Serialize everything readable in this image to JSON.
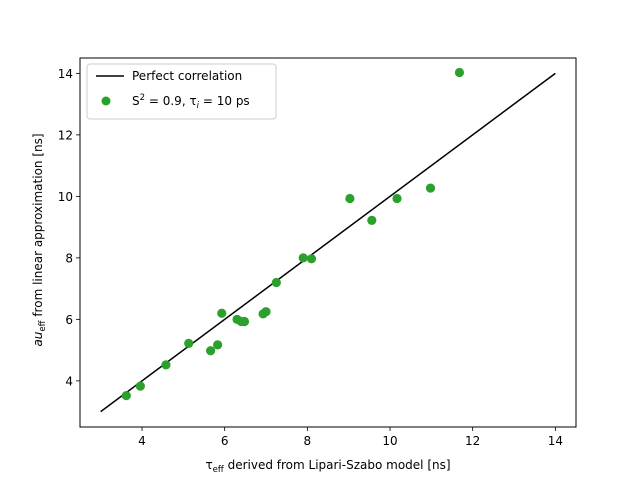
{
  "chart_data": {
    "type": "scatter",
    "x_label_main": "τ",
    "x_label_sub": "eff",
    "x_label_rest": " derived from Lipari-Szabo model [ns]",
    "y_label_main": "au",
    "y_label_sub": "eff",
    "y_label_rest": " from linear approximation [ns]",
    "xlim": [
      2.5,
      14.5
    ],
    "ylim": [
      2.5,
      14.5
    ],
    "x_ticks": [
      4,
      6,
      8,
      10,
      12,
      14
    ],
    "y_ticks": [
      4,
      6,
      8,
      10,
      12,
      14
    ],
    "grid": false,
    "legend_position": "top-left",
    "line": {
      "legend_label": "Perfect correlation",
      "color": "#000000",
      "x": [
        3,
        14
      ],
      "y": [
        3,
        14
      ]
    },
    "scatter": {
      "legend_label_main": "S",
      "legend_label_sup": "2",
      "legend_label_mid": " = 0.9, τ",
      "legend_label_sub": "i",
      "legend_label_end": " = 10 ps",
      "color": "#2ca02c",
      "points": [
        {
          "x": 3.62,
          "y": 3.52
        },
        {
          "x": 3.96,
          "y": 3.83
        },
        {
          "x": 4.58,
          "y": 4.52
        },
        {
          "x": 5.13,
          "y": 5.22
        },
        {
          "x": 5.66,
          "y": 4.98
        },
        {
          "x": 5.83,
          "y": 5.17
        },
        {
          "x": 5.93,
          "y": 6.2
        },
        {
          "x": 6.3,
          "y": 6.0
        },
        {
          "x": 6.4,
          "y": 5.93
        },
        {
          "x": 6.48,
          "y": 5.93
        },
        {
          "x": 6.93,
          "y": 6.18
        },
        {
          "x": 7.0,
          "y": 6.25
        },
        {
          "x": 7.25,
          "y": 7.2
        },
        {
          "x": 7.9,
          "y": 8.0
        },
        {
          "x": 8.1,
          "y": 7.97
        },
        {
          "x": 9.03,
          "y": 9.93
        },
        {
          "x": 9.56,
          "y": 9.22
        },
        {
          "x": 10.17,
          "y": 9.93
        },
        {
          "x": 10.98,
          "y": 10.27
        },
        {
          "x": 11.68,
          "y": 14.03
        }
      ]
    }
  }
}
